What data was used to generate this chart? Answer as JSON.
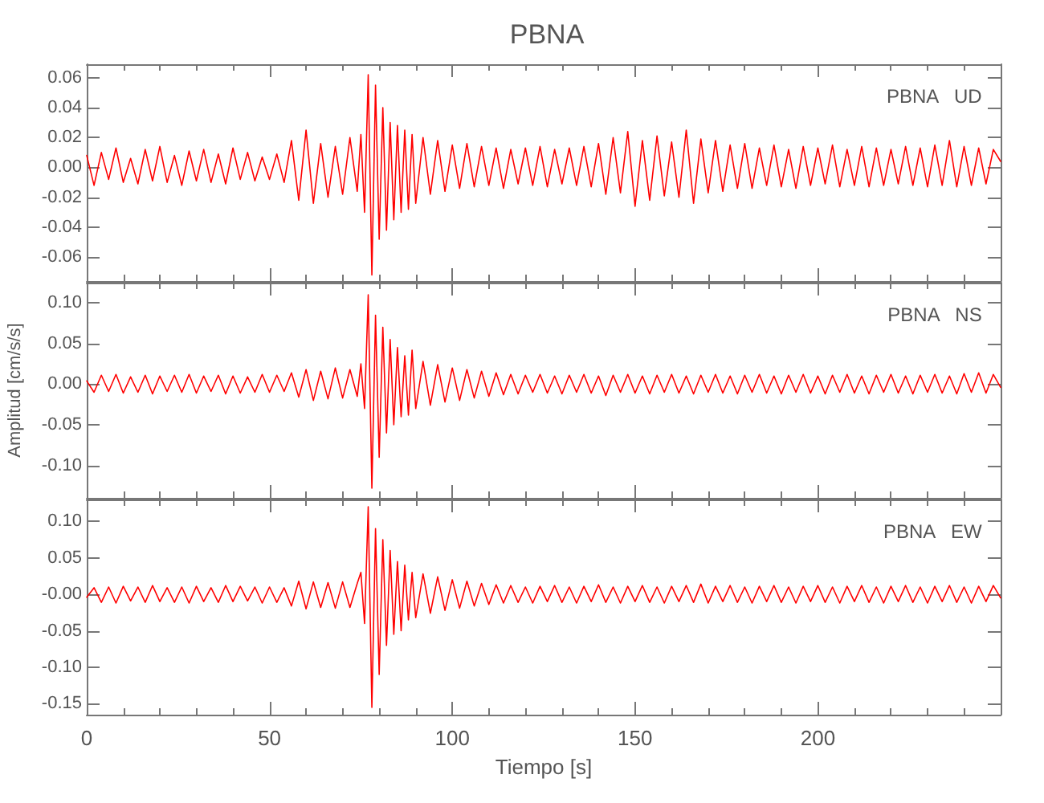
{
  "chart_data": [
    {
      "type": "line",
      "title": "PBNA",
      "annotations": [
        "PBNA   UD"
      ],
      "tick_labels": "y",
      "xlim": [
        0,
        250
      ],
      "xticks": [
        0,
        50,
        100,
        150,
        200
      ],
      "ylim": [
        -0.076,
        0.069
      ],
      "yticks": [
        {
          "value": -0.06,
          "label": "-0.06"
        },
        {
          "value": -0.04,
          "label": "-0.04"
        },
        {
          "value": -0.02,
          "label": "-0.02"
        },
        {
          "value": 0,
          "label": "0.00"
        },
        {
          "value": 0.02,
          "label": "0.02"
        },
        {
          "value": 0.04,
          "label": "0.04"
        },
        {
          "value": 0.06,
          "label": "0.06"
        }
      ],
      "x": [
        0,
        2,
        4,
        6,
        8,
        10,
        12,
        14,
        16,
        18,
        20,
        22,
        24,
        26,
        28,
        30,
        32,
        34,
        36,
        38,
        40,
        42,
        44,
        46,
        48,
        50,
        52,
        54,
        56,
        58,
        60,
        62,
        64,
        66,
        68,
        70,
        72,
        74,
        75,
        76,
        77,
        78,
        79,
        80,
        81,
        82,
        83,
        84,
        85,
        86,
        87,
        88,
        89,
        90,
        92,
        94,
        96,
        98,
        100,
        102,
        104,
        106,
        108,
        110,
        112,
        114,
        116,
        118,
        120,
        122,
        124,
        126,
        128,
        130,
        132,
        134,
        136,
        138,
        140,
        142,
        144,
        146,
        148,
        150,
        152,
        154,
        156,
        158,
        160,
        162,
        164,
        166,
        168,
        170,
        172,
        174,
        176,
        178,
        180,
        182,
        184,
        186,
        188,
        190,
        192,
        194,
        196,
        198,
        200,
        202,
        204,
        206,
        208,
        210,
        212,
        214,
        216,
        218,
        220,
        222,
        224,
        226,
        228,
        230,
        232,
        234,
        236,
        238,
        240,
        242,
        244,
        246,
        248,
        250
      ],
      "series": [
        {
          "color": "#ff0000",
          "values": [
            0.008,
            -0.012,
            0.01,
            -0.008,
            0.013,
            -0.01,
            0.006,
            -0.011,
            0.012,
            -0.009,
            0.014,
            -0.01,
            0.008,
            -0.012,
            0.011,
            -0.009,
            0.012,
            -0.01,
            0.009,
            -0.011,
            0.013,
            -0.008,
            0.01,
            -0.009,
            0.007,
            -0.008,
            0.009,
            -0.01,
            0.018,
            -0.022,
            0.025,
            -0.024,
            0.016,
            -0.02,
            0.014,
            -0.018,
            0.02,
            -0.016,
            0.022,
            -0.03,
            0.062,
            -0.072,
            0.055,
            -0.048,
            0.04,
            -0.042,
            0.03,
            -0.035,
            0.028,
            -0.03,
            0.025,
            -0.028,
            0.022,
            -0.024,
            0.02,
            -0.018,
            0.018,
            -0.016,
            0.015,
            -0.014,
            0.016,
            -0.013,
            0.014,
            -0.012,
            0.013,
            -0.014,
            0.012,
            -0.011,
            0.013,
            -0.012,
            0.014,
            -0.013,
            0.012,
            -0.011,
            0.013,
            -0.012,
            0.014,
            -0.013,
            0.016,
            -0.018,
            0.02,
            -0.017,
            0.024,
            -0.026,
            0.018,
            -0.022,
            0.021,
            -0.019,
            0.017,
            -0.02,
            0.025,
            -0.024,
            0.019,
            -0.017,
            0.018,
            -0.016,
            0.015,
            -0.014,
            0.016,
            -0.014,
            0.013,
            -0.012,
            0.015,
            -0.013,
            0.012,
            -0.014,
            0.014,
            -0.012,
            0.013,
            -0.011,
            0.015,
            -0.013,
            0.012,
            -0.012,
            0.014,
            -0.013,
            0.013,
            -0.012,
            0.012,
            -0.011,
            0.014,
            -0.012,
            0.013,
            -0.013,
            0.015,
            -0.012,
            0.018,
            -0.013,
            0.014,
            -0.012,
            0.013,
            -0.011,
            0.012,
            0.004
          ]
        }
      ]
    },
    {
      "type": "line",
      "ylabel": "Amplitud [cm/s/s]",
      "annotations": [
        "PBNA   NS"
      ],
      "tick_labels": "y",
      "xlim": [
        0,
        250
      ],
      "xticks": [
        0,
        50,
        100,
        150,
        200
      ],
      "ylim": [
        -0.14,
        0.125
      ],
      "yticks": [
        {
          "value": -0.1,
          "label": "-0.10"
        },
        {
          "value": -0.05,
          "label": "-0.05"
        },
        {
          "value": 0,
          "label": "0.00"
        },
        {
          "value": 0.05,
          "label": "0.05"
        },
        {
          "value": 0.1,
          "label": "0.10"
        }
      ],
      "x": [
        0,
        2,
        4,
        6,
        8,
        10,
        12,
        14,
        16,
        18,
        20,
        22,
        24,
        26,
        28,
        30,
        32,
        34,
        36,
        38,
        40,
        42,
        44,
        46,
        48,
        50,
        52,
        54,
        56,
        58,
        60,
        62,
        64,
        66,
        68,
        70,
        72,
        74,
        75,
        76,
        77,
        78,
        79,
        80,
        81,
        82,
        83,
        84,
        85,
        86,
        87,
        88,
        89,
        90,
        92,
        94,
        96,
        98,
        100,
        102,
        104,
        106,
        108,
        110,
        112,
        114,
        116,
        118,
        120,
        122,
        124,
        126,
        128,
        130,
        132,
        134,
        136,
        138,
        140,
        142,
        144,
        146,
        148,
        150,
        152,
        154,
        156,
        158,
        160,
        162,
        164,
        166,
        168,
        170,
        172,
        174,
        176,
        178,
        180,
        182,
        184,
        186,
        188,
        190,
        192,
        194,
        196,
        198,
        200,
        202,
        204,
        206,
        208,
        210,
        212,
        214,
        216,
        218,
        220,
        222,
        224,
        226,
        228,
        230,
        232,
        234,
        236,
        238,
        240,
        242,
        244,
        246,
        248,
        250
      ],
      "series": [
        {
          "color": "#ff0000",
          "values": [
            0.004,
            -0.01,
            0.011,
            -0.009,
            0.012,
            -0.011,
            0.009,
            -0.01,
            0.011,
            -0.012,
            0.01,
            -0.009,
            0.011,
            -0.01,
            0.012,
            -0.011,
            0.01,
            -0.009,
            0.011,
            -0.012,
            0.01,
            -0.011,
            0.009,
            -0.01,
            0.012,
            -0.01,
            0.011,
            -0.009,
            0.014,
            -0.016,
            0.018,
            -0.02,
            0.016,
            -0.018,
            0.02,
            -0.017,
            0.018,
            -0.015,
            0.025,
            -0.03,
            0.11,
            -0.128,
            0.085,
            -0.09,
            0.07,
            -0.06,
            0.055,
            -0.05,
            0.045,
            -0.04,
            0.035,
            -0.038,
            0.042,
            -0.03,
            0.028,
            -0.026,
            0.024,
            -0.022,
            0.02,
            -0.02,
            0.018,
            -0.017,
            0.016,
            -0.015,
            0.014,
            -0.013,
            0.012,
            -0.012,
            0.011,
            -0.01,
            0.012,
            -0.011,
            0.01,
            -0.012,
            0.011,
            -0.01,
            0.012,
            -0.011,
            0.01,
            -0.014,
            0.011,
            -0.01,
            0.012,
            -0.011,
            0.01,
            -0.012,
            0.011,
            -0.01,
            0.012,
            -0.011,
            0.01,
            -0.012,
            0.011,
            -0.01,
            0.012,
            -0.011,
            0.01,
            -0.012,
            0.011,
            -0.01,
            0.012,
            -0.011,
            0.01,
            -0.012,
            0.011,
            -0.01,
            0.012,
            -0.011,
            0.01,
            -0.012,
            0.011,
            -0.01,
            0.012,
            -0.011,
            0.01,
            -0.012,
            0.011,
            -0.01,
            0.012,
            -0.011,
            0.01,
            -0.012,
            0.011,
            -0.01,
            0.012,
            -0.011,
            0.01,
            -0.012,
            0.013,
            -0.01,
            0.014,
            -0.011,
            0.012,
            -0.004
          ]
        }
      ]
    },
    {
      "type": "line",
      "xlabel": "Tiempo [s]",
      "annotations": [
        "PBNA   EW"
      ],
      "xlim": [
        0,
        250
      ],
      "xticks": [
        0,
        50,
        100,
        150,
        200
      ],
      "ylim": [
        -0.165,
        0.13
      ],
      "yticks": [
        {
          "value": -0.15,
          "label": "-0.15"
        },
        {
          "value": -0.1,
          "label": "-0.10"
        },
        {
          "value": -0.05,
          "label": "-0.05"
        },
        {
          "value": 0,
          "label": "-0.00"
        },
        {
          "value": 0.05,
          "label": "0.05"
        },
        {
          "value": 0.1,
          "label": "0.10"
        }
      ],
      "x": [
        0,
        2,
        4,
        6,
        8,
        10,
        12,
        14,
        16,
        18,
        20,
        22,
        24,
        26,
        28,
        30,
        32,
        34,
        36,
        38,
        40,
        42,
        44,
        46,
        48,
        50,
        52,
        54,
        56,
        58,
        60,
        62,
        64,
        66,
        68,
        70,
        72,
        74,
        75,
        76,
        77,
        78,
        79,
        80,
        81,
        82,
        83,
        84,
        85,
        86,
        87,
        88,
        89,
        90,
        92,
        94,
        96,
        98,
        100,
        102,
        104,
        106,
        108,
        110,
        112,
        114,
        116,
        118,
        120,
        122,
        124,
        126,
        128,
        130,
        132,
        134,
        136,
        138,
        140,
        142,
        144,
        146,
        148,
        150,
        152,
        154,
        156,
        158,
        160,
        162,
        164,
        166,
        168,
        170,
        172,
        174,
        176,
        178,
        180,
        182,
        184,
        186,
        188,
        190,
        192,
        194,
        196,
        198,
        200,
        202,
        204,
        206,
        208,
        210,
        212,
        214,
        216,
        218,
        220,
        222,
        224,
        226,
        228,
        230,
        232,
        234,
        236,
        238,
        240,
        242,
        244,
        246,
        248,
        250
      ],
      "series": [
        {
          "color": "#ff0000",
          "values": [
            -0.004,
            0.009,
            -0.011,
            0.01,
            -0.012,
            0.011,
            -0.009,
            0.01,
            -0.011,
            0.012,
            -0.01,
            0.009,
            -0.011,
            0.01,
            -0.012,
            0.011,
            -0.01,
            0.009,
            -0.011,
            0.012,
            -0.01,
            0.011,
            -0.009,
            0.01,
            -0.012,
            0.01,
            -0.011,
            0.009,
            -0.016,
            0.018,
            -0.02,
            0.017,
            -0.018,
            0.016,
            -0.019,
            0.017,
            -0.018,
            0.015,
            0.03,
            -0.04,
            0.12,
            -0.155,
            0.09,
            -0.11,
            0.075,
            -0.07,
            0.06,
            -0.055,
            0.045,
            -0.05,
            0.04,
            -0.035,
            0.03,
            -0.032,
            0.028,
            -0.026,
            0.024,
            -0.022,
            0.02,
            -0.019,
            0.018,
            -0.016,
            0.015,
            -0.014,
            0.013,
            -0.012,
            0.012,
            -0.011,
            0.01,
            -0.012,
            0.011,
            -0.01,
            0.012,
            -0.011,
            0.01,
            -0.012,
            0.011,
            -0.01,
            0.013,
            -0.011,
            0.01,
            -0.012,
            0.011,
            -0.01,
            0.012,
            -0.011,
            0.01,
            -0.012,
            0.011,
            -0.01,
            0.012,
            -0.011,
            0.014,
            -0.012,
            0.011,
            -0.01,
            0.012,
            -0.011,
            0.01,
            -0.012,
            0.011,
            -0.01,
            0.012,
            -0.011,
            0.01,
            -0.012,
            0.011,
            -0.01,
            0.012,
            -0.011,
            0.01,
            -0.012,
            0.011,
            -0.01,
            0.012,
            -0.011,
            0.01,
            -0.012,
            0.011,
            -0.01,
            0.012,
            -0.011,
            0.01,
            -0.012,
            0.011,
            -0.01,
            0.012,
            -0.011,
            0.01,
            -0.012,
            0.011,
            -0.01,
            0.012,
            -0.005
          ]
        }
      ]
    }
  ]
}
